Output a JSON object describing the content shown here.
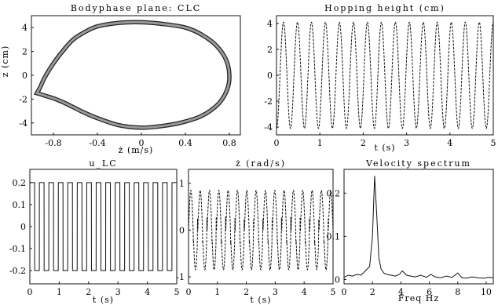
{
  "chart_data": [
    {
      "type": "line",
      "title": "Bodyphase plane: CLC",
      "xlabel": "ż (m/s)",
      "ylabel": "z (cm)",
      "xlim": [
        -1.0,
        0.9
      ],
      "ylim": [
        -5,
        5
      ],
      "x_ticks": [
        "-0.8",
        "-0.4",
        "0",
        "0.4",
        "0.8"
      ],
      "x_tick_values": [
        -0.8,
        -0.4,
        0,
        0.4,
        0.8
      ],
      "y_ticks": [
        "4",
        "2",
        "0",
        "-2",
        "-4"
      ],
      "y_tick_values": [
        4,
        2,
        0,
        -2,
        -4
      ],
      "series": [
        {
          "x": [
            -0.95,
            -0.92,
            -0.88,
            -0.8,
            -0.7,
            -0.62,
            -0.52,
            -0.4,
            -0.2,
            0.0,
            0.2,
            0.4,
            0.55,
            0.68,
            0.77,
            0.8,
            0.78,
            0.7,
            0.55,
            0.35,
            0.15,
            0.0,
            -0.2,
            -0.4,
            -0.55,
            -0.68,
            -0.78,
            -0.88,
            -0.93,
            -0.95
          ],
          "y": [
            -1.5,
            -1.0,
            -0.2,
            1.0,
            2.2,
            3.0,
            3.6,
            4.1,
            4.4,
            4.45,
            4.3,
            4.0,
            3.4,
            2.5,
            1.3,
            0.0,
            -1.2,
            -2.4,
            -3.4,
            -4.0,
            -4.3,
            -4.4,
            -4.2,
            -3.6,
            -3.0,
            -2.4,
            -2.0,
            -1.7,
            -1.55,
            -1.5
          ]
        }
      ],
      "grid": false
    },
    {
      "type": "line",
      "title": "Hopping height (cm)",
      "xlabel": "t (s)",
      "ylabel": "",
      "xlim": [
        0,
        5
      ],
      "ylim": [
        -4.6,
        4.6
      ],
      "x_ticks": [
        "0",
        "1",
        "2",
        "3",
        "4",
        "5"
      ],
      "x_tick_values": [
        0,
        1,
        2,
        3,
        4,
        5
      ],
      "y_ticks": [
        "4",
        "2",
        "0",
        "-2",
        "-4"
      ],
      "y_tick_values": [
        4,
        2,
        0,
        -2,
        -4
      ],
      "series": [
        {
          "waveform": "sine",
          "amplitude": 4.1,
          "frequency_hz": 3.1,
          "phase_deg": -90
        }
      ],
      "grid": false
    },
    {
      "type": "line",
      "title": "u_LC",
      "xlabel": "t (s)",
      "ylabel": "",
      "xlim": [
        0,
        5
      ],
      "ylim": [
        -0.26,
        0.26
      ],
      "x_ticks": [
        "0",
        "1",
        "2",
        "3",
        "4",
        "5"
      ],
      "x_tick_values": [
        0,
        1,
        2,
        3,
        4,
        5
      ],
      "y_ticks": [
        "0.2",
        "0.1",
        "0",
        "-0.1",
        "-0.2"
      ],
      "y_tick_values": [
        0.2,
        0.1,
        0,
        -0.1,
        -0.2
      ],
      "series": [
        {
          "waveform": "square",
          "amplitude": 0.2,
          "frequency_hz": 3.1,
          "phase_deg": 0
        }
      ],
      "grid": false
    },
    {
      "type": "line",
      "title": "ż (rad/s)",
      "xlabel": "t (s)",
      "ylabel": "",
      "xlim": [
        0,
        5
      ],
      "ylim": [
        -1.15,
        1.3
      ],
      "x_ticks": [
        "0",
        "1",
        "2",
        "3",
        "4",
        "5"
      ],
      "x_tick_values": [
        0,
        1,
        2,
        3,
        4,
        5
      ],
      "y_ticks": [
        "1",
        "0",
        "-1"
      ],
      "y_tick_values": [
        1,
        0,
        -1
      ],
      "series": [
        {
          "waveform": "sine-with-spikes",
          "amplitude": 0.85,
          "frequency_hz": 3.1,
          "phase_deg": 0
        }
      ],
      "grid": false
    },
    {
      "type": "line",
      "title": "Velocity spectrum",
      "xlabel": "Freq Hz",
      "ylabel": "",
      "xlim": [
        0,
        10.5
      ],
      "ylim": [
        -0.01,
        0.255
      ],
      "x_ticks": [
        "0",
        "2",
        "4",
        "6",
        "8",
        "10"
      ],
      "x_tick_values": [
        0,
        2,
        4,
        6,
        8,
        10
      ],
      "y_ticks": [
        "0.2",
        "0.1",
        "0"
      ],
      "y_tick_values": [
        0.2,
        0.1,
        0
      ],
      "series": [
        {
          "x": [
            0,
            0.3,
            0.6,
            0.9,
            1.2,
            1.5,
            1.8,
            2.0,
            2.15,
            2.3,
            2.45,
            2.6,
            2.8,
            3.0,
            3.3,
            3.6,
            3.9,
            4.1,
            4.4,
            4.7,
            5.0,
            5.4,
            5.8,
            6.1,
            6.4,
            6.8,
            7.2,
            7.6,
            8.0,
            8.3,
            8.6,
            9.0,
            9.4,
            9.8,
            10.2,
            10.5
          ],
          "y": [
            0.005,
            0.01,
            0.008,
            0.012,
            0.01,
            0.02,
            0.03,
            0.1,
            0.24,
            0.15,
            0.05,
            0.025,
            0.015,
            0.012,
            0.01,
            0.008,
            0.012,
            0.02,
            0.01,
            0.008,
            0.006,
            0.01,
            0.005,
            0.012,
            0.006,
            0.004,
            0.008,
            0.005,
            0.015,
            0.004,
            0.003,
            0.006,
            0.004,
            0.003,
            0.005,
            0.004
          ]
        }
      ],
      "grid": false
    }
  ]
}
